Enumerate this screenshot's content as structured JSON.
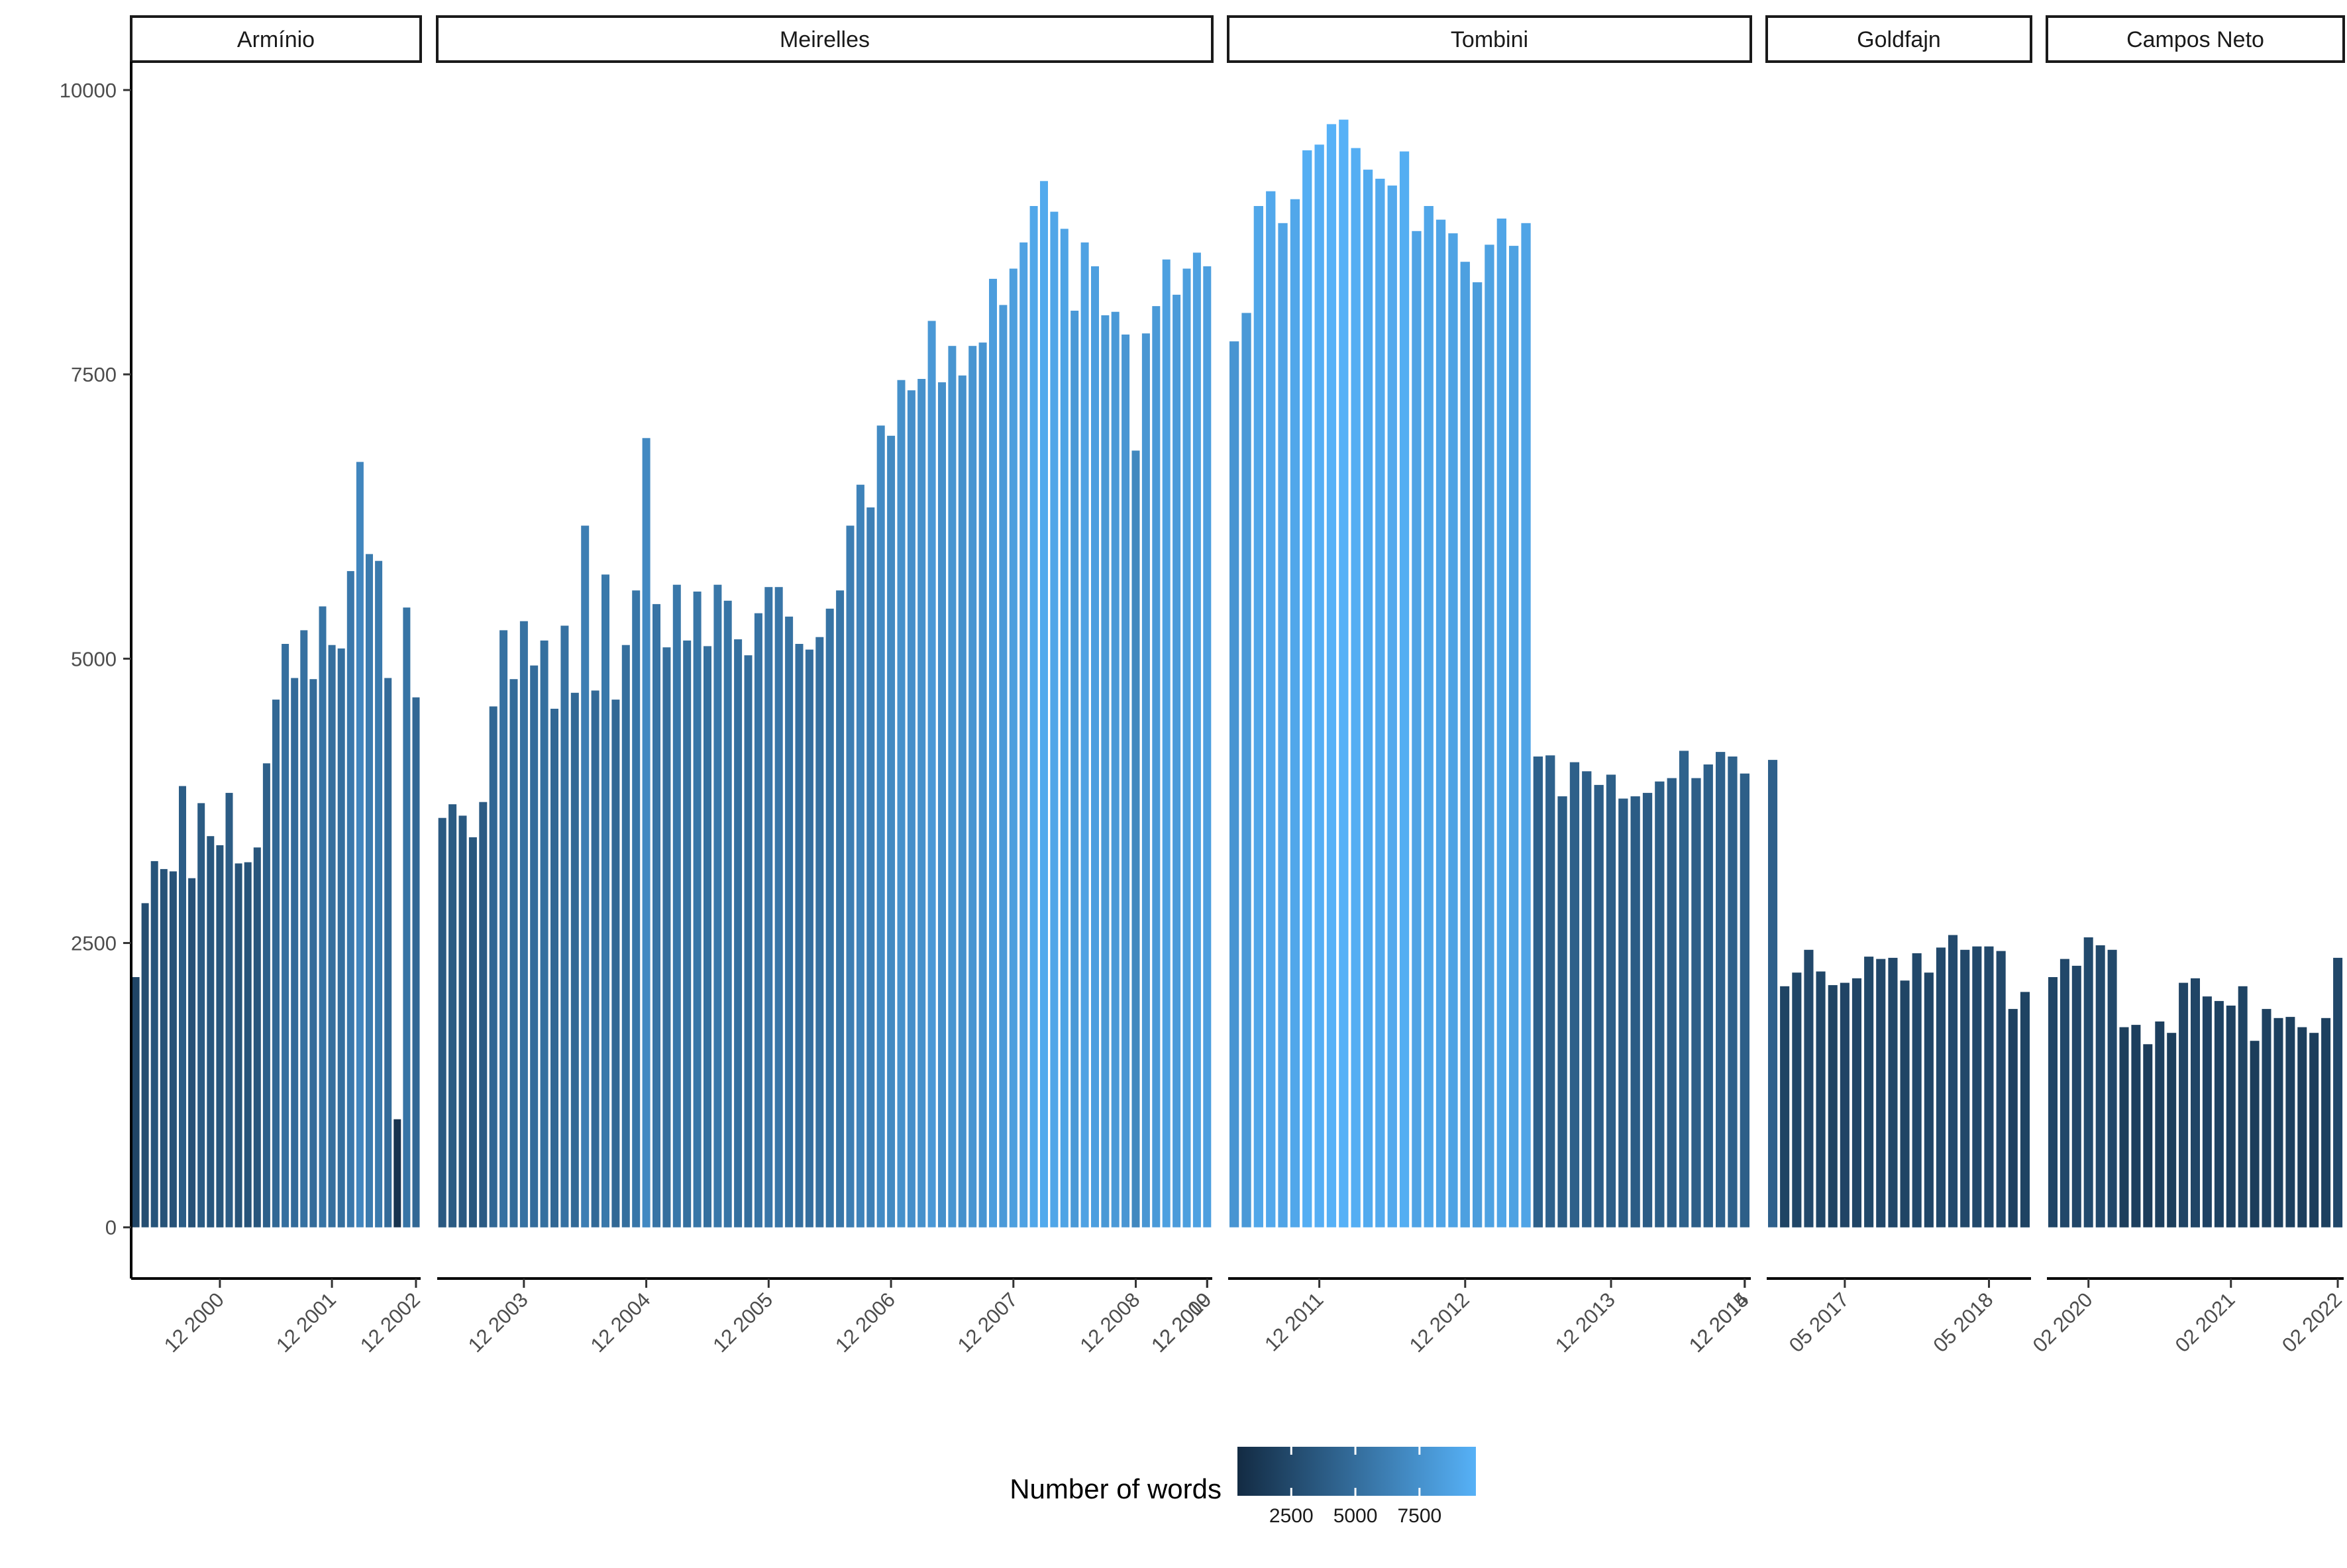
{
  "chart_data": {
    "type": "bar",
    "facets": [
      "Armínio",
      "Meirelles",
      "Tombini",
      "Goldfajn",
      "Campos Neto"
    ],
    "y_axis": {
      "ticks": [
        0,
        2500,
        5000,
        7500,
        10000
      ],
      "tick_labels": [
        "0",
        "2500",
        "5000",
        "7500",
        "10000"
      ],
      "ylim": [
        -450,
        10250
      ]
    },
    "legend": {
      "title": "Number of words",
      "ticks": [
        2500,
        5000,
        7500
      ],
      "tick_labels": [
        "2500",
        "5000",
        "7500"
      ],
      "range": [
        400,
        9700
      ],
      "low_color": "#132B43",
      "high_color": "#56B1F7",
      "position": "bottom"
    },
    "panels": [
      {
        "name": "Armínio",
        "xticks": [
          "12 2000",
          "12 2001",
          "12 2002"
        ],
        "values": [
          2200,
          2850,
          3220,
          3150,
          3130,
          3880,
          3070,
          3730,
          3440,
          3360,
          3820,
          3200,
          3210,
          3340,
          4080,
          4640,
          5130,
          4830,
          5250,
          4820,
          5460,
          5120,
          5090,
          5770,
          6730,
          5920,
          5860,
          4830,
          950,
          5450,
          4660
        ]
      },
      {
        "name": "Meirelles",
        "xticks": [
          "12 2003",
          "12 2004",
          "12 2005",
          "12 2006",
          "12 2007",
          "12 2008",
          "12 2009",
          "12 2010"
        ],
        "values": [
          3600,
          3720,
          3620,
          3430,
          3740,
          4580,
          5250,
          4820,
          5330,
          4940,
          5160,
          4560,
          5290,
          4700,
          6170,
          4720,
          5740,
          4640,
          5120,
          5600,
          6940,
          5480,
          5100,
          5650,
          5160,
          5590,
          5110,
          5650,
          5510,
          5170,
          5030,
          5400,
          5630,
          5630,
          5370,
          5130,
          5080,
          5190,
          5440,
          5600,
          6170,
          6530,
          6330,
          7050,
          6960,
          7450,
          7360,
          7460,
          7970,
          7430,
          7750,
          7490,
          7750,
          7780,
          8340,
          8110,
          8430,
          8660,
          8980,
          9200,
          8930,
          8780,
          8060,
          8660,
          8450,
          8020,
          8050,
          7850,
          6830,
          7860,
          8100,
          8510,
          8200,
          8430,
          8570,
          8450
        ]
      },
      {
        "name": "Tombini",
        "xticks": [
          "12 2011",
          "12 2012",
          "12 2013",
          "12 2014",
          "12 2015"
        ],
        "values": [
          7790,
          8040,
          8980,
          9110,
          8830,
          9040,
          9470,
          9520,
          9700,
          9740,
          9490,
          9300,
          9220,
          9160,
          9460,
          8760,
          8980,
          8860,
          8740,
          8490,
          8310,
          8640,
          8870,
          8630,
          8830,
          4140,
          4150,
          3790,
          4090,
          4010,
          3890,
          3980,
          3770,
          3790,
          3820,
          3920,
          3950,
          4190,
          3950,
          4070,
          4180,
          4140,
          3990
        ]
      },
      {
        "name": "Goldfajn",
        "xticks": [
          "05 2017",
          "05 2018"
        ],
        "values": [
          4110,
          2120,
          2240,
          2440,
          2250,
          2130,
          2150,
          2190,
          2380,
          2360,
          2370,
          2170,
          2410,
          2240,
          2460,
          2570,
          2440,
          2470,
          2470,
          2430,
          1920,
          2070
        ]
      },
      {
        "name": "Campos Neto",
        "xticks": [
          "02 2020",
          "02 2021",
          "02 2022"
        ],
        "values": [
          2200,
          2360,
          2300,
          2550,
          2480,
          2440,
          1760,
          1780,
          1610,
          1810,
          1710,
          2150,
          2190,
          2030,
          1990,
          1950,
          2120,
          1640,
          1920,
          1840,
          1850,
          1760,
          1710,
          1840,
          2370
        ]
      }
    ]
  }
}
